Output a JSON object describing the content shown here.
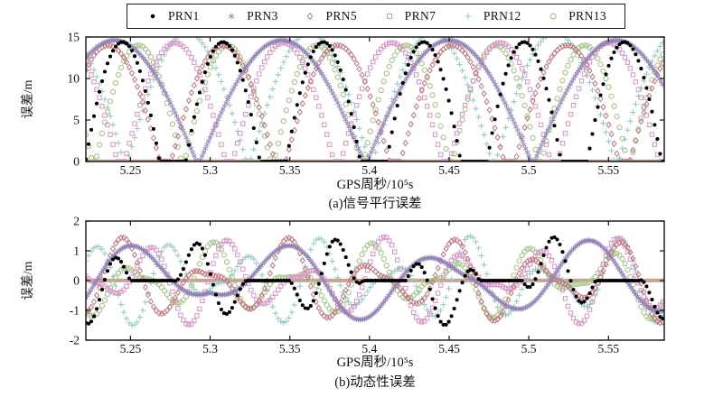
{
  "legend": {
    "items": [
      {
        "label": "PRN1",
        "marker": "filled-circle",
        "color": "#000000"
      },
      {
        "label": "PRN3",
        "marker": "asterisk",
        "color": "#8f7fb5"
      },
      {
        "label": "PRN5",
        "marker": "open-diamond",
        "color": "#c2737c"
      },
      {
        "label": "PRN7",
        "marker": "open-square",
        "color": "#d795c7"
      },
      {
        "label": "PRN12",
        "marker": "plus",
        "color": "#97ccc3"
      },
      {
        "label": "PRN13",
        "marker": "open-circle",
        "color": "#a3c487"
      }
    ]
  },
  "chart_data": [
    {
      "type": "scatter",
      "subplot": "a",
      "title": "(a)信号平行误差",
      "xlabel": "GPS周秒/10⁵s",
      "ylabel": "误差/m",
      "xlim": [
        5.222,
        5.585
      ],
      "ylim": [
        0,
        15
      ],
      "xticks": [
        5.25,
        5.3,
        5.35,
        5.4,
        5.45,
        5.5,
        5.55
      ],
      "xtick_labels": [
        "5.25",
        "5.3",
        "5.35",
        "5.4",
        "5.45",
        "5.5",
        "5.55"
      ],
      "yticks": [
        0,
        5,
        10,
        15
      ],
      "ytick_labels": [
        "0",
        "5",
        "10",
        "15"
      ],
      "grid": false,
      "legend_position": "top-outside",
      "baseline_band": {
        "y": 0,
        "color": "#b8937e",
        "opacity": 0.9
      },
      "series": [
        {
          "name": "PRN12",
          "marker": "plus",
          "color": "#97ccc3",
          "model": "arcs",
          "amplitude": 15.5,
          "period": 0.077,
          "phase": 5.17,
          "floor": 0.05,
          "step": 0.0017
        },
        {
          "name": "PRN13",
          "marker": "open-circle",
          "color": "#a3c487",
          "model": "arcs",
          "amplitude": 14.0,
          "period": 0.056,
          "phase": 5.227,
          "floor": 0.06,
          "step": 0.0017
        },
        {
          "name": "PRN7",
          "marker": "open-square",
          "color": "#d795c7",
          "model": "arcs",
          "amplitude": 14.3,
          "period": 0.068,
          "phase": 5.176,
          "floor": 0.1,
          "step": 0.0017
        },
        {
          "name": "PRN5",
          "marker": "open-diamond",
          "color": "#c2737c",
          "model": "arcs",
          "amplitude": 14.0,
          "period": 0.072,
          "phase": 5.2,
          "floor": 0.15,
          "step": 0.0017
        },
        {
          "name": "PRN3",
          "marker": "asterisk",
          "color": "#8f7fb5",
          "model": "arcs",
          "amplitude": 14.6,
          "period": 0.105,
          "phase": 5.2925,
          "floor": 0.03,
          "step": 0.001
        },
        {
          "name": "PRN1",
          "marker": "filled-circle",
          "color": "#000000",
          "model": "arcs",
          "amplitude": 14.4,
          "period": 0.063,
          "phase": 5.2135,
          "floor": 0.4,
          "step": 0.0017
        }
      ]
    },
    {
      "type": "scatter",
      "subplot": "b",
      "title": "(b)动态性误差",
      "xlabel": "GPS周秒/10⁵s",
      "ylabel": "误差/m",
      "xlim": [
        5.222,
        5.585
      ],
      "ylim": [
        -2,
        2
      ],
      "xticks": [
        5.25,
        5.3,
        5.35,
        5.4,
        5.45,
        5.5,
        5.55
      ],
      "xtick_labels": [
        "5.25",
        "5.3",
        "5.35",
        "5.4",
        "5.45",
        "5.5",
        "5.55"
      ],
      "yticks": [
        -2,
        -1,
        0,
        1,
        2
      ],
      "ytick_labels": [
        "-2",
        "-1",
        "0",
        "1",
        "2"
      ],
      "grid": false,
      "legend_position": "top-outside",
      "baseline_band": {
        "y": 0,
        "color": "#b8937e",
        "opacity": 0.85
      },
      "series": [
        {
          "name": "PRN12",
          "marker": "plus",
          "color": "#97ccc3",
          "model": "am_sine",
          "amplitude": 1.5,
          "period": 0.047,
          "phase": 5.26325,
          "mod_period": 0.105,
          "mod_phase": 5.2,
          "mod_floor": 0.05,
          "env_min": 0.1,
          "step": 0.0017
        },
        {
          "name": "PRN13",
          "marker": "open-circle",
          "color": "#a3c487",
          "model": "am_sine",
          "amplitude": 1.3,
          "period": 0.05,
          "phase": 5.2395,
          "mod_period": 0.09,
          "mod_phase": 5.26,
          "mod_floor": 0.15,
          "env_min": 0.1,
          "step": 0.0017
        },
        {
          "name": "PRN7",
          "marker": "open-square",
          "color": "#d795c7",
          "model": "am_sine",
          "amplitude": 1.5,
          "period": 0.049,
          "phase": 5.24975,
          "mod_period": 0.125,
          "mod_phase": 5.23,
          "mod_floor": 0.05,
          "env_min": 0.1,
          "step": 0.0017
        },
        {
          "name": "PRN5",
          "marker": "open-diamond",
          "color": "#c2737c",
          "model": "am_sine",
          "amplitude": 1.45,
          "period": 0.052,
          "phase": 5.232,
          "mod_period": 0.11,
          "mod_phase": 5.19,
          "mod_floor": 0.1,
          "env_min": 0.15,
          "step": 0.0017
        },
        {
          "name": "PRN3",
          "marker": "asterisk",
          "color": "#8f7fb5",
          "model": "am_sine",
          "amplitude": 1.35,
          "period": 0.095,
          "phase": 5.32375,
          "mod_period": 0.16,
          "mod_phase": 5.3,
          "mod_floor": 0.0,
          "env_min": 0.3,
          "step": 0.001
        },
        {
          "name": "PRN1",
          "marker": "filled-circle",
          "color": "#000000",
          "model": "am_sine",
          "amplitude": 1.5,
          "period": 0.045,
          "phase": 5.27875,
          "mod_period": 0.073,
          "mod_phase": 5.2635,
          "mod_floor": 0.55,
          "env_min": 0.0,
          "step": 0.0017
        }
      ]
    }
  ]
}
